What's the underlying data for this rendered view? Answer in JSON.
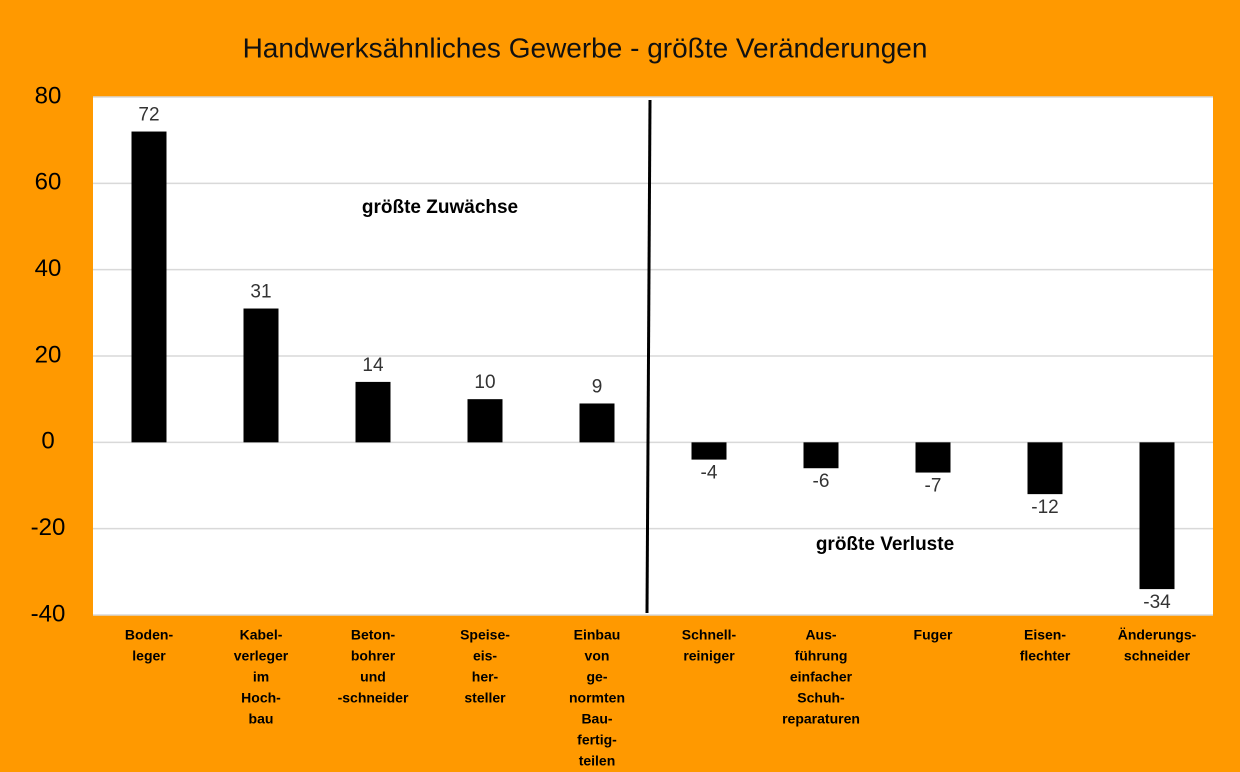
{
  "chart_data": {
    "type": "bar",
    "title": "Handwerksähnliches Gewerbe - größte Veränderungen",
    "categories": [
      [
        "Boden-",
        "leger"
      ],
      [
        "Kabel-",
        "verleger",
        "im",
        "Hoch-",
        "bau"
      ],
      [
        "Beton-",
        "bohrer",
        "und",
        "-schneider"
      ],
      [
        "Speise-",
        "eis-",
        "her-",
        "steller"
      ],
      [
        "Einbau",
        "von",
        "ge-",
        "normten",
        "Bau-",
        "fertig-",
        "teilen"
      ],
      [
        "Schnell-",
        "reiniger"
      ],
      [
        "Aus-",
        "führung",
        "einfacher",
        "Schuh-",
        "reparaturen"
      ],
      [
        "Fuger"
      ],
      [
        "Eisen-",
        "flechter"
      ],
      [
        "Änderungs-",
        "schneider"
      ]
    ],
    "values": [
      72,
      31,
      14,
      10,
      9,
      -4,
      -6,
      -7,
      -12,
      -34
    ],
    "color": "#000000",
    "ylim": [
      -40,
      80
    ],
    "yticks": [
      -40,
      -20,
      0,
      20,
      40,
      60,
      80
    ],
    "grid": true,
    "annotations": [
      "größte Zuwächse",
      "größte Verluste"
    ]
  }
}
